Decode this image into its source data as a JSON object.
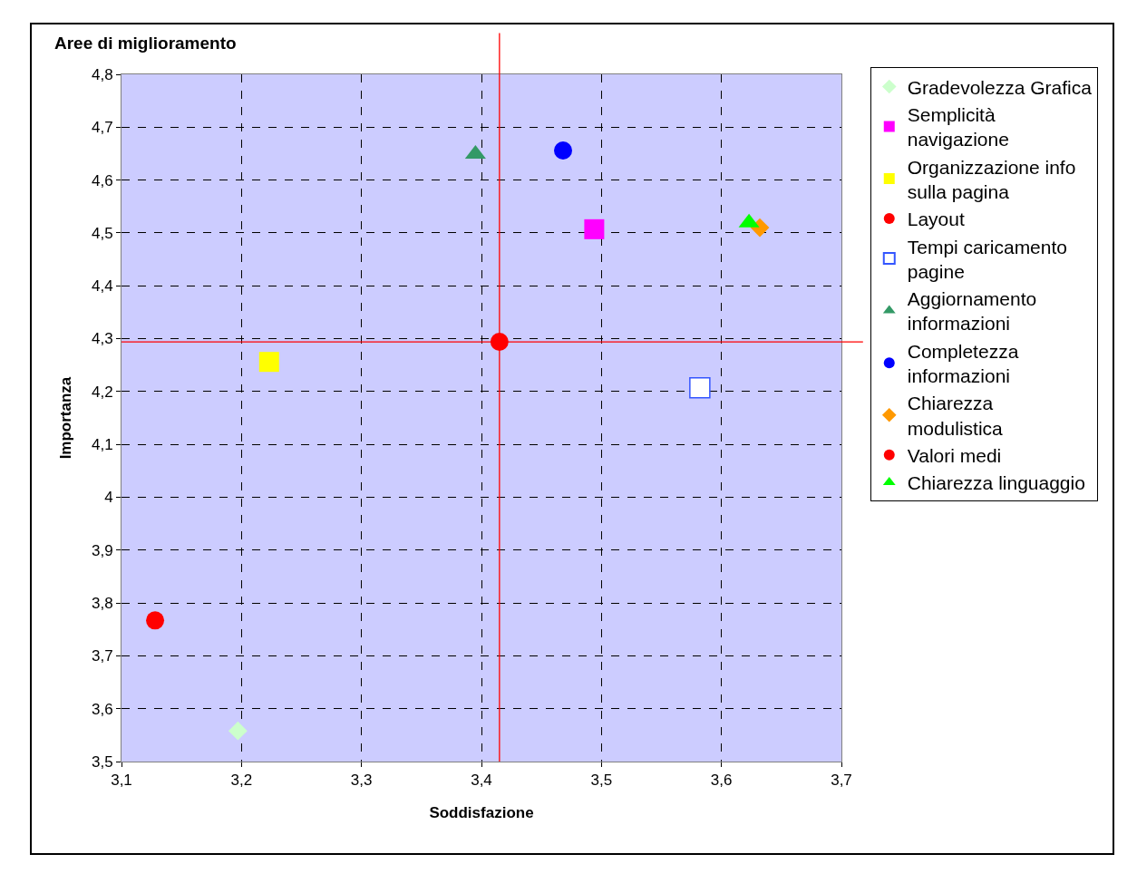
{
  "chart_data": {
    "type": "scatter",
    "title": "Aree di miglioramento",
    "xlabel": "Soddisfazione",
    "ylabel": "Importanza",
    "xlim": [
      3.1,
      3.7
    ],
    "xticks": [
      {
        "value": 3.1,
        "label": "3,1"
      },
      {
        "value": 3.2,
        "label": "3,2"
      },
      {
        "value": 3.3,
        "label": "3,3"
      },
      {
        "value": 3.4,
        "label": "3,4"
      },
      {
        "value": 3.5,
        "label": "3,5"
      },
      {
        "value": 3.6,
        "label": "3,6"
      },
      {
        "value": 3.7,
        "label": "3,7"
      }
    ],
    "ylim": [
      3.5,
      4.8
    ],
    "yticks": [
      {
        "value": 3.5,
        "label": "3,5"
      },
      {
        "value": 3.6,
        "label": "3,6"
      },
      {
        "value": 3.7,
        "label": "3,7"
      },
      {
        "value": 3.8,
        "label": "3,8"
      },
      {
        "value": 3.9,
        "label": "3,9"
      },
      4,
      {
        "value": 4.1,
        "label": "4,1"
      },
      {
        "value": 4.2,
        "label": "4,2"
      },
      {
        "value": 4.3,
        "label": "4,3"
      },
      {
        "value": 4.4,
        "label": "4,4"
      },
      {
        "value": 4.5,
        "label": "4,5"
      },
      {
        "value": 4.6,
        "label": "4,6"
      },
      {
        "value": 4.7,
        "label": "4,7"
      },
      {
        "value": 4.8,
        "label": "4,8"
      }
    ],
    "grid": true,
    "legend": "right",
    "series": [
      {
        "name": "Gradevolezza Grafica",
        "color": "#ccffcc",
        "marker": "diamond",
        "x": [
          3.197
        ],
        "values": [
          3.558
        ]
      },
      {
        "name": "Semplicità navigazione",
        "color": "#ff00ff",
        "marker": "square",
        "x": [
          3.494
        ],
        "values": [
          4.507
        ]
      },
      {
        "name": "Organizzazione info sulla pagina",
        "color": "#ffff00",
        "marker": "square",
        "x": [
          3.223
        ],
        "values": [
          4.256
        ]
      },
      {
        "name": "Layout",
        "color": "#ff0000",
        "marker": "circle",
        "x": [
          3.128
        ],
        "values": [
          3.767
        ]
      },
      {
        "name": "Tempi caricamento pagine",
        "color": "#ffffff",
        "marker": "square",
        "x": [
          3.582
        ],
        "values": [
          4.207
        ]
      },
      {
        "name": "Aggiornamento informazioni",
        "color": "#339966",
        "marker": "triangle",
        "x": [
          3.395
        ],
        "values": [
          4.649
        ]
      },
      {
        "name": "Completezza informazioni",
        "color": "#0000ff",
        "marker": "circle",
        "x": [
          3.468
        ],
        "values": [
          4.656
        ]
      },
      {
        "name": "Chiarezza modulistica",
        "color": "#ff9900",
        "marker": "diamond",
        "x": [
          3.632
        ],
        "values": [
          4.51
        ]
      },
      {
        "name": "Valori medi",
        "color": "#ff0000",
        "marker": "circle",
        "x": [
          3.415
        ],
        "values": [
          4.294
        ]
      },
      {
        "name": "Chiarezza linguaggio",
        "color": "#00ff00",
        "marker": "triangle",
        "x": [
          3.623
        ],
        "values": [
          4.519
        ]
      }
    ],
    "ref_lines": [
      {
        "axis": "x",
        "value": 3.415,
        "color": "#ff0000"
      },
      {
        "axis": "y",
        "value": 4.294,
        "color": "#ff0000"
      }
    ]
  }
}
